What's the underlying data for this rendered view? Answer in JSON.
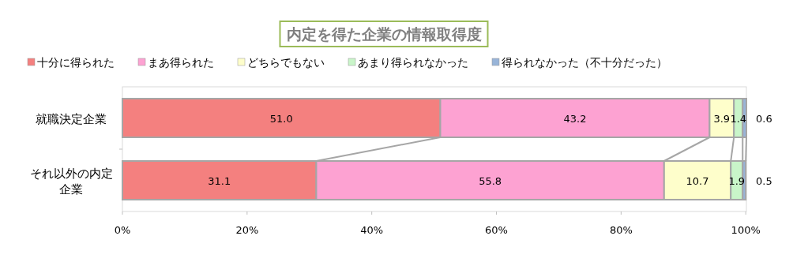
{
  "chart_data": {
    "type": "bar",
    "orientation": "horizontal",
    "stacked": true,
    "title": "内定を得た企業の情報取得度",
    "categories": [
      "就職決定企業",
      "それ以外の内定企業"
    ],
    "series": [
      {
        "name": "十分に得られた",
        "color": "#f4807f",
        "values": [
          51.0,
          31.1
        ],
        "value_labels": [
          "51.0",
          "31.1"
        ]
      },
      {
        "name": "まあ得られた",
        "color": "#fda2d2",
        "values": [
          43.2,
          55.8
        ],
        "value_labels": [
          "43.2",
          "55.8"
        ]
      },
      {
        "name": "どちらでもない",
        "color": "#fefecb",
        "values": [
          3.9,
          10.7
        ],
        "value_labels": [
          "3.9",
          "10.7"
        ]
      },
      {
        "name": "あまり得られなかった",
        "color": "#c9f5c9",
        "values": [
          1.4,
          1.9
        ],
        "value_labels": [
          "1.4",
          "1.9"
        ]
      },
      {
        "name": "得られなかった（不十分だった）",
        "color": "#98b4d8",
        "values": [
          0.6,
          0.5
        ],
        "value_labels": [
          "0.6",
          "0.5"
        ]
      }
    ],
    "xlim": [
      0,
      100.1
    ],
    "xticks": [
      {
        "value": 0,
        "label": "0%"
      },
      {
        "value": 20,
        "label": "20%"
      },
      {
        "value": 40,
        "label": "40%"
      },
      {
        "value": 60,
        "label": "60%"
      },
      {
        "value": 80,
        "label": "80%"
      },
      {
        "value": 100,
        "label": "100%"
      }
    ],
    "legend": "top",
    "grid": false
  }
}
